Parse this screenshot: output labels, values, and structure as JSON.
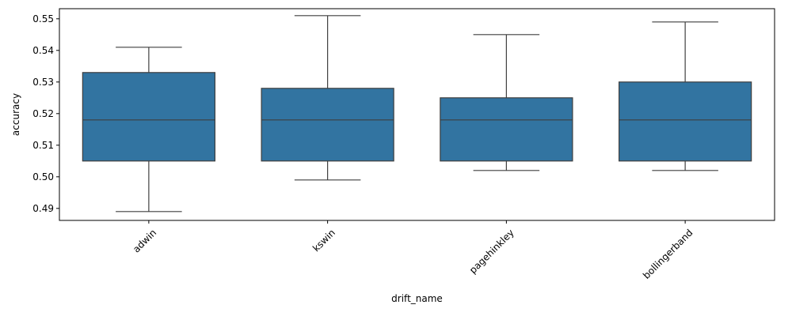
{
  "chart_data": {
    "type": "box",
    "xlabel": "drift_name",
    "ylabel": "accuracy",
    "ylim": [
      0.4862,
      0.5532
    ],
    "yticks": [
      0.49,
      0.5,
      0.51,
      0.52,
      0.53,
      0.54,
      0.55
    ],
    "ytick_labels": [
      "0.49",
      "0.50",
      "0.51",
      "0.52",
      "0.53",
      "0.54",
      "0.55"
    ],
    "grid": false,
    "box_color": "#3274a1",
    "line_color": "#3f3f3f",
    "categories": [
      "adwin",
      "kswin",
      "pagehinkley",
      "bollingerband"
    ],
    "boxes": [
      {
        "category": "adwin",
        "whisker_low": 0.489,
        "q1": 0.505,
        "median": 0.518,
        "q3": 0.533,
        "whisker_high": 0.541
      },
      {
        "category": "kswin",
        "whisker_low": 0.499,
        "q1": 0.505,
        "median": 0.518,
        "q3": 0.528,
        "whisker_high": 0.551
      },
      {
        "category": "pagehinkley",
        "whisker_low": 0.502,
        "q1": 0.505,
        "median": 0.518,
        "q3": 0.525,
        "whisker_high": 0.545
      },
      {
        "category": "bollingerband",
        "whisker_low": 0.502,
        "q1": 0.505,
        "median": 0.518,
        "q3": 0.53,
        "whisker_high": 0.549
      }
    ]
  }
}
